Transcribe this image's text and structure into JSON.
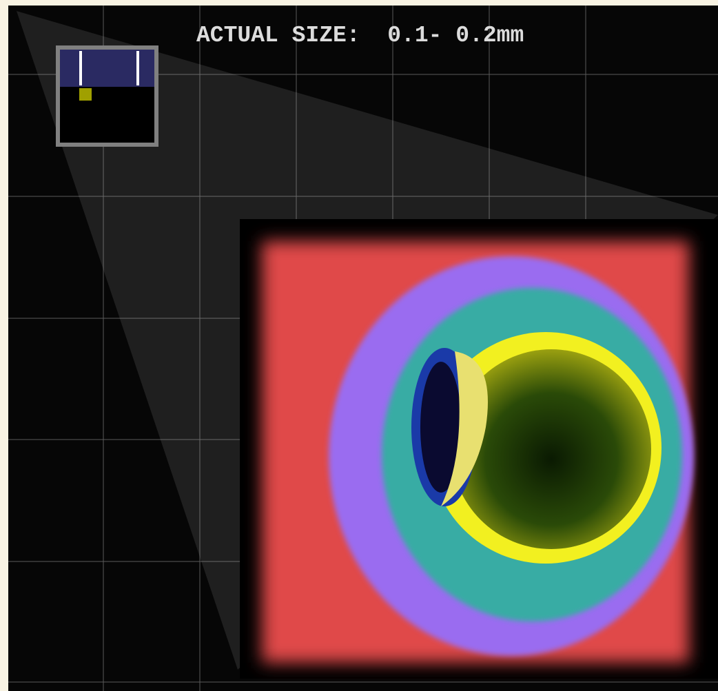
{
  "caption": "ACTUAL SIZE:  0.1- 0.2mm"
}
